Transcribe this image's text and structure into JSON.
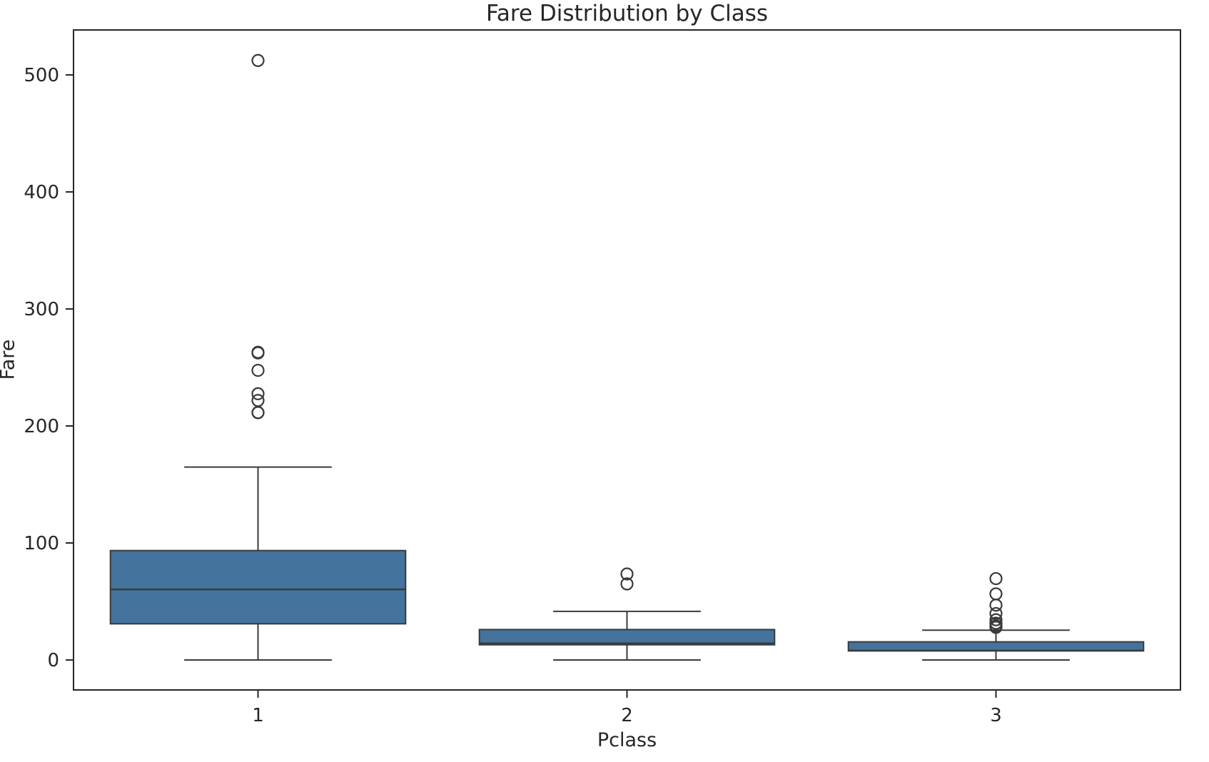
{
  "chart_data": {
    "type": "box",
    "title": "Fare Distribution by Class",
    "xlabel": "Pclass",
    "ylabel": "Fare",
    "categories": [
      "1",
      "2",
      "3"
    ],
    "yticks": [
      0,
      100,
      200,
      300,
      400,
      500
    ],
    "ylim": [
      -25.6,
      538.4
    ],
    "grid": false,
    "legend": null,
    "series": [
      {
        "category": "1",
        "whislo": 0,
        "q1": 30.92,
        "med": 60.29,
        "q3": 93.5,
        "whishi": 164.87,
        "fliers": [
          211.34,
          211.5,
          221.78,
          227.53,
          247.52,
          262.38,
          263.0,
          512.33
        ]
      },
      {
        "category": "2",
        "whislo": 0,
        "q1": 13.0,
        "med": 14.25,
        "q3": 26.0,
        "whishi": 41.58,
        "fliers": [
          65.0,
          73.5
        ]
      },
      {
        "category": "3",
        "whislo": 0,
        "q1": 7.75,
        "med": 8.05,
        "q3": 15.5,
        "whishi": 25.47,
        "fliers": [
          27.9,
          28.5,
          29.13,
          31.27,
          31.39,
          34.38,
          39.69,
          46.9,
          56.5,
          69.55
        ]
      }
    ],
    "colors": {
      "box_fill": "#44739E",
      "line": "#3A3A3A",
      "spine": "#262626",
      "text": "#262626"
    }
  }
}
